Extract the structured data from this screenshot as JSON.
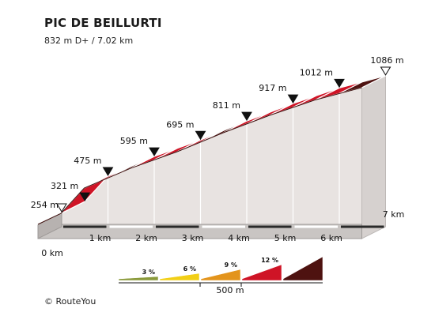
{
  "header": {
    "title": "PIC DE BEILLURTI",
    "subtitle": "832 m D+ / 7.02 km"
  },
  "footer": {
    "credit": "© RouteYou"
  },
  "chart_data": {
    "type": "area",
    "title": "PIC DE BEILLURTI",
    "subtitle": "832 m D+ / 7.02 km",
    "x_unit": "km",
    "y_unit": "m",
    "xlim": [
      0,
      7
    ],
    "x_ticks": [
      {
        "value": 0,
        "label": "0 km"
      },
      {
        "value": 1,
        "label": "1 km"
      },
      {
        "value": 2,
        "label": "2 km"
      },
      {
        "value": 3,
        "label": "3 km"
      },
      {
        "value": 4,
        "label": "4 km"
      },
      {
        "value": 5,
        "label": "5 km"
      },
      {
        "value": 6,
        "label": "6 km"
      },
      {
        "value": 7,
        "label": "7 km"
      }
    ],
    "elevation_points": [
      {
        "km": 0,
        "m": 254,
        "label": "254 m"
      },
      {
        "km": 0.5,
        "m": 321,
        "label": "321 m"
      },
      {
        "km": 1,
        "m": 475,
        "label": "475 m"
      },
      {
        "km": 2,
        "m": 595,
        "label": "595 m"
      },
      {
        "km": 3,
        "m": 695,
        "label": "695 m"
      },
      {
        "km": 4,
        "m": 811,
        "label": "811 m"
      },
      {
        "km": 5,
        "m": 917,
        "label": "917 m"
      },
      {
        "km": 6,
        "m": 1012,
        "label": "1012 m"
      },
      {
        "km": 7,
        "m": 1086,
        "label": "1086 m"
      }
    ],
    "segments": [
      {
        "from_km": 0,
        "to_km": 0.5,
        "gradient": 13
      },
      {
        "from_km": 0.5,
        "to_km": 1,
        "gradient": 11
      },
      {
        "from_km": 1,
        "to_km": 1.5,
        "gradient": 11
      },
      {
        "from_km": 1.5,
        "to_km": 2,
        "gradient": 13
      },
      {
        "from_km": 2,
        "to_km": 2.5,
        "gradient": 10
      },
      {
        "from_km": 2.5,
        "to_km": 3,
        "gradient": 10
      },
      {
        "from_km": 3,
        "to_km": 3.5,
        "gradient": 11
      },
      {
        "from_km": 3.5,
        "to_km": 4,
        "gradient": 13
      },
      {
        "from_km": 4,
        "to_km": 4.5,
        "gradient": 11
      },
      {
        "from_km": 4.5,
        "to_km": 5,
        "gradient": 10
      },
      {
        "from_km": 5,
        "to_km": 5.5,
        "gradient": 10
      },
      {
        "from_km": 5.5,
        "to_km": 6,
        "gradient": 10
      },
      {
        "from_km": 6,
        "to_km": 6.5,
        "gradient": 10
      },
      {
        "from_km": 6.5,
        "to_km": 7,
        "gradient": 13
      }
    ],
    "legend": {
      "items": [
        {
          "label": "3 %",
          "color": "#8a9a3a"
        },
        {
          "label": "6 %",
          "color": "#f2cf16"
        },
        {
          "label": "9 %",
          "color": "#e3941c"
        },
        {
          "label": "12 %",
          "color": "#cf1426"
        },
        {
          "label": "",
          "color": "#4e1210"
        }
      ],
      "scale_label": "500 m"
    },
    "colors": {
      "steep": "#4e1210",
      "hard": "#cf1426",
      "wall": "#e8e3e1",
      "wall_edge": "#bdb8b6",
      "base_front": "#c9c5c3",
      "base_stripe": "#2a2a2a"
    }
  }
}
